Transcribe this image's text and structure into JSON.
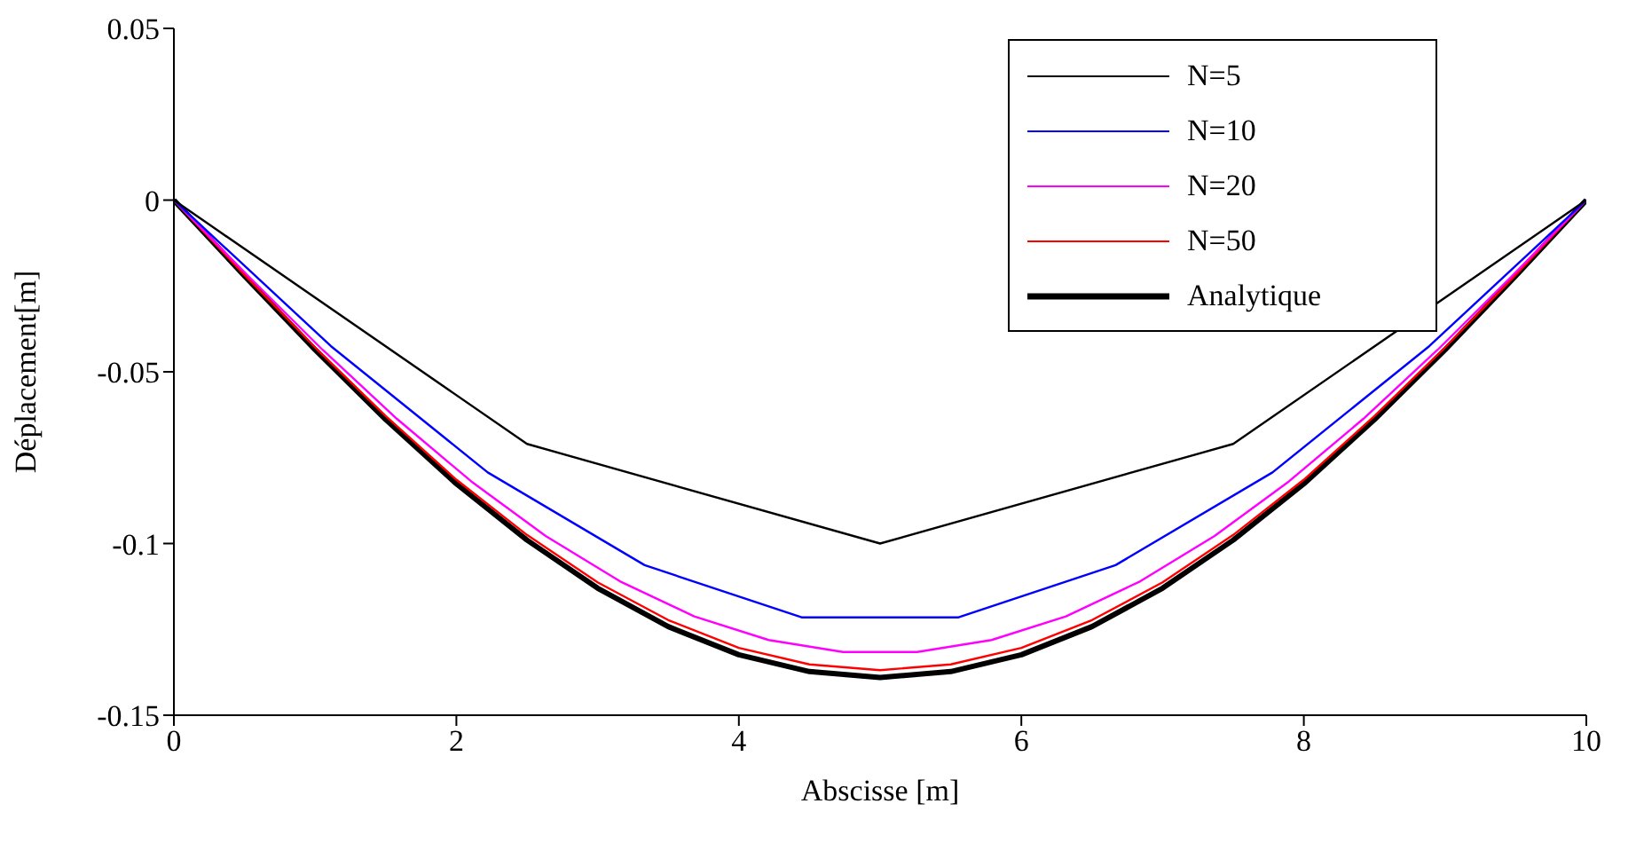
{
  "chart_data": {
    "type": "line",
    "xlabel": "Abscisse [m]",
    "ylabel": "Déplacement[m]",
    "xlim": [
      0,
      10
    ],
    "xticks": [
      0,
      2,
      4,
      6,
      8,
      10
    ],
    "ylim": [
      -0.15,
      0.05
    ],
    "yticks": [
      -0.15,
      -0.1,
      -0.05,
      0,
      0.05
    ],
    "grid": false,
    "legend": "top right",
    "marker": "none",
    "line_style": "solid",
    "series": [
      {
        "name": "N=5",
        "color": "#000000",
        "x": [
          0,
          2.5,
          5,
          7.5,
          10
        ],
        "values": [
          0,
          -0.071,
          -0.1,
          -0.071,
          0
        ]
      },
      {
        "name": "N=10",
        "color": "#0000ff",
        "x": [
          0,
          1.111,
          2.222,
          3.333,
          4.444,
          5.556,
          6.667,
          7.778,
          8.889,
          10
        ],
        "values": [
          0,
          -0.0425,
          -0.0793,
          -0.1063,
          -0.1215,
          -0.1215,
          -0.1063,
          -0.0793,
          -0.0425,
          0
        ]
      },
      {
        "name": "N=20",
        "color": "#ff00ff",
        "x": [
          0,
          0.526,
          1.053,
          1.579,
          2.105,
          2.632,
          3.158,
          3.684,
          4.211,
          4.737,
          5.263,
          5.789,
          6.316,
          6.842,
          7.368,
          7.895,
          8.421,
          8.947,
          9.474,
          10
        ],
        "values": [
          0,
          -0.0221,
          -0.0436,
          -0.0637,
          -0.0819,
          -0.0978,
          -0.111,
          -0.1212,
          -0.1281,
          -0.1316,
          -0.1316,
          -0.1281,
          -0.1212,
          -0.111,
          -0.0978,
          -0.0819,
          -0.0637,
          -0.0436,
          -0.0221,
          0
        ]
      },
      {
        "name": "N=50",
        "color": "#ff0000",
        "x": [
          0,
          0.5,
          1,
          1.5,
          2,
          2.5,
          3,
          3.5,
          4,
          4.5,
          5,
          5.5,
          6,
          6.5,
          7,
          7.5,
          8,
          8.5,
          9,
          9.5,
          10
        ],
        "values": [
          0,
          -0.0218,
          -0.0429,
          -0.0629,
          -0.0814,
          -0.0975,
          -0.1113,
          -0.1223,
          -0.1304,
          -0.1352,
          -0.1369,
          -0.1352,
          -0.1304,
          -0.1223,
          -0.1113,
          -0.0975,
          -0.0814,
          -0.0629,
          -0.0429,
          -0.0218,
          0
        ]
      },
      {
        "name": "Analytique",
        "color": "#000000",
        "x": [
          0,
          0.5,
          1,
          1.5,
          2,
          2.5,
          3,
          3.5,
          4,
          4.5,
          5,
          5.5,
          6,
          6.5,
          7,
          7.5,
          8,
          8.5,
          9,
          9.5,
          10
        ],
        "values": [
          0,
          -0.0221,
          -0.0436,
          -0.0639,
          -0.0826,
          -0.099,
          -0.113,
          -0.1242,
          -0.1324,
          -0.1373,
          -0.139,
          -0.1373,
          -0.1324,
          -0.1242,
          -0.113,
          -0.099,
          -0.0826,
          -0.0639,
          -0.0436,
          -0.0221,
          0
        ]
      }
    ]
  }
}
